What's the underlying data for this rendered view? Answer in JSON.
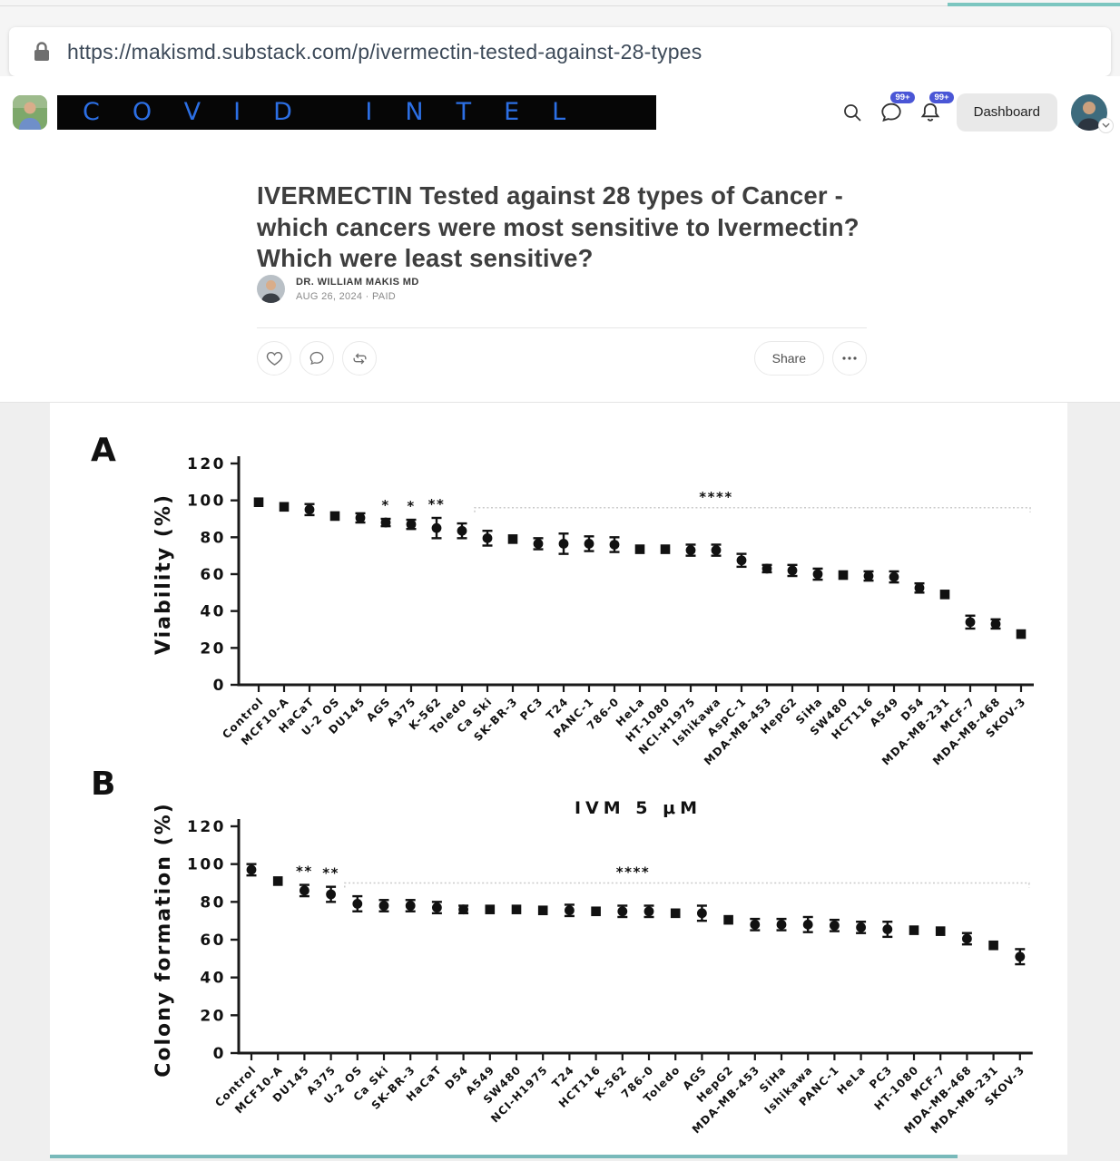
{
  "browser": {
    "url": "https://makismd.substack.com/p/ivermectin-tested-against-28-types"
  },
  "header": {
    "logo_text": "COVID INTEL",
    "chat_badge": "99+",
    "notif_badge": "99+",
    "dashboard_label": "Dashboard"
  },
  "article": {
    "title": "IVERMECTIN Tested against 28 types of Cancer - which cancers were most sensitive to Ivermectin? Which were least sensitive?",
    "author": "DR. WILLIAM MAKIS MD",
    "meta": "AUG 26, 2024 · PAID",
    "share_label": "Share"
  },
  "chart_data": [
    {
      "type": "scatter",
      "panel": "A",
      "ylabel": "Viability (%)",
      "ylim": [
        0,
        120
      ],
      "yticks": [
        0,
        20,
        40,
        60,
        80,
        100,
        120
      ],
      "categories": [
        "Control",
        "MCF10-A",
        "HaCaT",
        "U-2 OS",
        "DU145",
        "AGS",
        "A375",
        "K-562",
        "Toledo",
        "Ca Ski",
        "SK-BR-3",
        "PC3",
        "T24",
        "PANC-1",
        "786-0",
        "HeLa",
        "HT-1080",
        "NCI-H1975",
        "Ishikawa",
        "AspC-1",
        "MDA-MB-453",
        "HepG2",
        "SiHa",
        "SW480",
        "HCT116",
        "A549",
        "D54",
        "MDA-MB-231",
        "MCF-7",
        "MDA-MB-468",
        "SKOV-3"
      ],
      "values": [
        99,
        96.5,
        95,
        91.5,
        90.5,
        88,
        87,
        85,
        83.5,
        79.5,
        79,
        76.5,
        76.5,
        76.5,
        76,
        73.5,
        73.5,
        73,
        73,
        67.5,
        63,
        62,
        60,
        59.5,
        59,
        58.5,
        52.5,
        49,
        34,
        33,
        27.5
      ],
      "errors": [
        1,
        1,
        3,
        1,
        2.5,
        2,
        2.5,
        5.5,
        4,
        4,
        1.5,
        3,
        5.5,
        4,
        4,
        1,
        1,
        3,
        3,
        3.5,
        2,
        3,
        3,
        1,
        2.5,
        3,
        2.5,
        1,
        3.5,
        2.5,
        1
      ],
      "sig_marks": [
        {
          "index": 5,
          "text": "*"
        },
        {
          "index": 6,
          "text": "*"
        },
        {
          "index": 7,
          "text": "**"
        }
      ],
      "bracket": {
        "from": 9,
        "to": 30,
        "y": 96,
        "label": "****",
        "label_at": 18
      }
    },
    {
      "type": "scatter",
      "panel": "B",
      "title": "IVM 5 μM",
      "ylabel": "Colony formation (%)",
      "ylim": [
        0,
        120
      ],
      "yticks": [
        0,
        20,
        40,
        60,
        80,
        100,
        120
      ],
      "categories": [
        "Control",
        "MCF10-A",
        "DU145",
        "A375",
        "U-2 OS",
        "Ca Ski",
        "SK-BR-3",
        "HaCaT",
        "D54",
        "A549",
        "SW480",
        "NCI-H1975",
        "T24",
        "HCT116",
        "K-562",
        "786-0",
        "Toledo",
        "AGS",
        "HepG2",
        "MDA-MB-453",
        "SiHa",
        "Ishikawa",
        "PANC-1",
        "HeLa",
        "PC3",
        "HT-1080",
        "MCF-7",
        "MDA-MB-468",
        "MDA-MB-231",
        "SKOV-3"
      ],
      "values": [
        97,
        91,
        86,
        84,
        79,
        78,
        78,
        77,
        76,
        76,
        76,
        75.5,
        75.5,
        75,
        75,
        75,
        74,
        74,
        70.5,
        68,
        68,
        68,
        67.5,
        66.5,
        65.5,
        65,
        64.5,
        60.5,
        57,
        51
      ],
      "errors": [
        3,
        1,
        3,
        4,
        4,
        3,
        3,
        3,
        2,
        1,
        1,
        1,
        3,
        1,
        3,
        3,
        1,
        4,
        1,
        3,
        3,
        4,
        3,
        3,
        4,
        1,
        1,
        3,
        1,
        4
      ],
      "sig_marks": [
        {
          "index": 2,
          "text": "**"
        },
        {
          "index": 3,
          "text": "**"
        }
      ],
      "bracket": {
        "from": 4,
        "to": 29,
        "y": 90,
        "label": "****",
        "label_at": 14.4
      }
    }
  ]
}
